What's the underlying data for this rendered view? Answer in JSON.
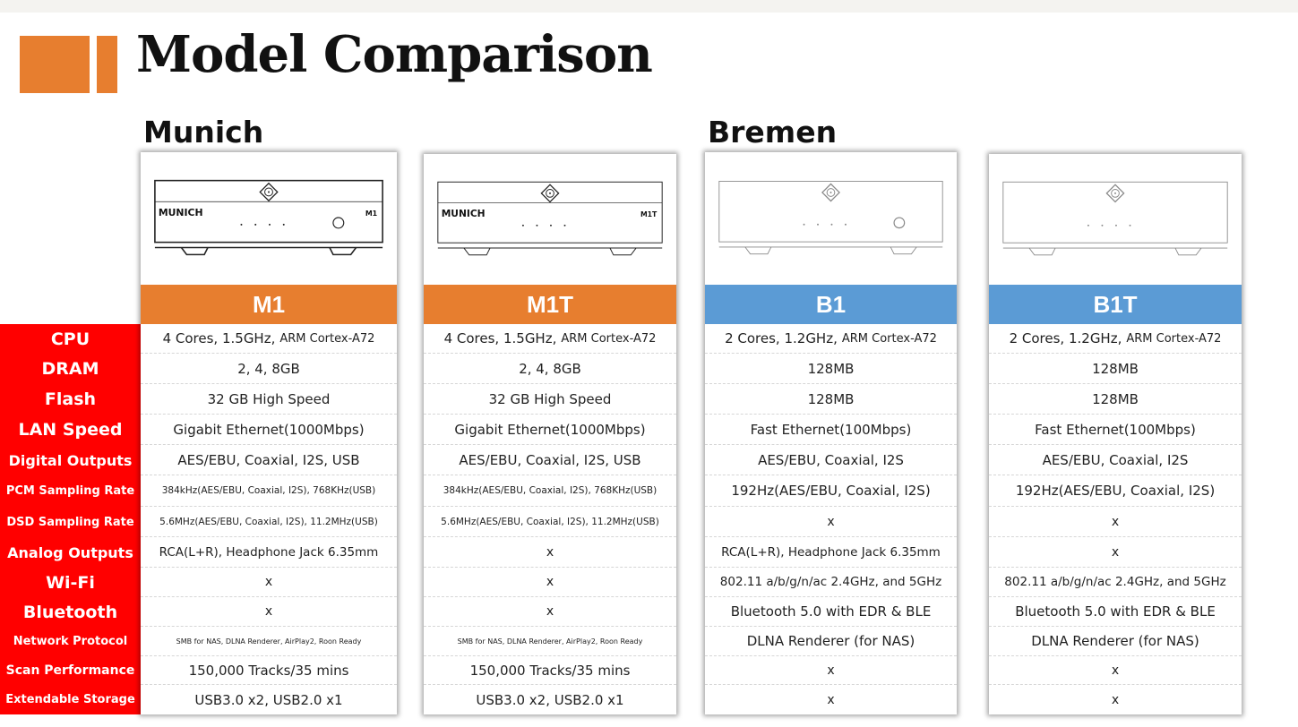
{
  "title": "Model Comparison",
  "groups": [
    "Munich",
    "Bremen"
  ],
  "colors": {
    "accent": "#e77e2f",
    "label_bg": "#ff0000",
    "munich_bar": "#e77e2f",
    "bremen_bar": "#5b9bd5"
  },
  "row_labels": [
    "CPU",
    "DRAM",
    "Flash",
    "LAN Speed",
    "Digital Outputs",
    "PCM Sampling Rate",
    "DSD Sampling Rate",
    "Analog Outputs",
    "Wi-Fi",
    "Bluetooth",
    "Network Protocol",
    "Scan Performance",
    "Extendable Storage"
  ],
  "models": [
    {
      "name": "M1",
      "brand": "MUNICH",
      "badge": "M1",
      "has_knob": true,
      "cpu_main": "4 Cores, 1.5GHz,",
      "cpu_arch": "ARM Cortex-A72",
      "specs": [
        "2, 4, 8GB",
        "32 GB High Speed",
        "Gigabit Ethernet(1000Mbps)",
        "AES/EBU, Coaxial, I2S, USB",
        "384kHz(AES/EBU, Coaxial, I2S), 768KHz(USB)",
        "5.6MHz(AES/EBU, Coaxial, I2S), 11.2MHz(USB)",
        "RCA(L+R), Headphone Jack 6.35mm",
        "x",
        "x",
        "SMB for NAS, DLNA Renderer, AirPlay2, Roon Ready",
        "150,000 Tracks/35 mins",
        "USB3.0 x2, USB2.0 x1"
      ]
    },
    {
      "name": "M1T",
      "brand": "MUNICH",
      "badge": "M1T",
      "has_knob": false,
      "cpu_main": "4 Cores, 1.5GHz,",
      "cpu_arch": "ARM Cortex-A72",
      "specs": [
        "2, 4, 8GB",
        "32 GB High Speed",
        "Gigabit Ethernet(1000Mbps)",
        "AES/EBU, Coaxial, I2S, USB",
        "384kHz(AES/EBU, Coaxial, I2S), 768KHz(USB)",
        "5.6MHz(AES/EBU, Coaxial, I2S), 11.2MHz(USB)",
        "x",
        "x",
        "x",
        "SMB for NAS, DLNA Renderer, AirPlay2, Roon Ready",
        "150,000 Tracks/35 mins",
        "USB3.0 x2, USB2.0 x1"
      ]
    },
    {
      "name": "B1",
      "brand": "",
      "badge": "",
      "has_knob": true,
      "cpu_main": "2 Cores, 1.2GHz,",
      "cpu_arch": "ARM Cortex-A72",
      "specs": [
        "128MB",
        "128MB",
        "Fast Ethernet(100Mbps)",
        "AES/EBU, Coaxial, I2S",
        "192Hz(AES/EBU, Coaxial, I2S)",
        "x",
        "RCA(L+R), Headphone Jack 6.35mm",
        "802.11 a/b/g/n/ac 2.4GHz, and 5GHz",
        "Bluetooth 5.0 with EDR & BLE",
        "DLNA Renderer (for NAS)",
        "x",
        "x"
      ]
    },
    {
      "name": "B1T",
      "brand": "",
      "badge": "",
      "has_knob": false,
      "cpu_main": "2 Cores, 1.2GHz,",
      "cpu_arch": "ARM Cortex-A72",
      "specs": [
        "128MB",
        "128MB",
        "Fast Ethernet(100Mbps)",
        "AES/EBU, Coaxial, I2S",
        "192Hz(AES/EBU, Coaxial, I2S)",
        "x",
        "x",
        "802.11 a/b/g/n/ac 2.4GHz, and 5GHz",
        "Bluetooth 5.0 with EDR & BLE",
        "DLNA Renderer (for NAS)",
        "x",
        "x"
      ]
    }
  ]
}
